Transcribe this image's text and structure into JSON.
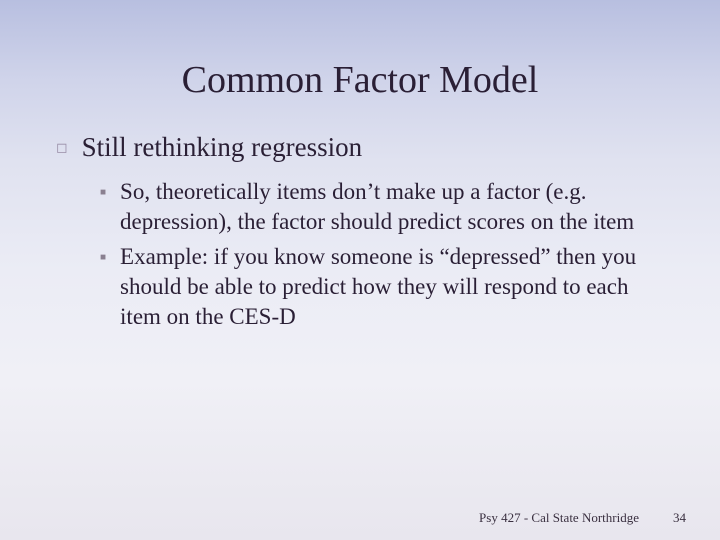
{
  "slide": {
    "title": "Common Factor Model",
    "background": {
      "gradient_top": "#b8bfe0",
      "gradient_mid": "#e0e2f0",
      "gradient_bottom": "#e8e6ee"
    },
    "title_fontsize": 38,
    "title_color": "#2a1f35",
    "body_color": "#2a1f35",
    "bullets": {
      "level1": [
        {
          "text": "Still rethinking regression",
          "fontsize": 27,
          "bullet_glyph": "◻",
          "bullet_color": "#9a8fa8",
          "children": [
            {
              "text": "So, theoretically items don’t make up a factor (e.g. depression), the factor should predict scores on the item",
              "fontsize": 23,
              "bullet_glyph": "■",
              "bullet_color": "#8a8090"
            },
            {
              "text": "Example: if you know someone is “depressed” then you should be able to predict how they will respond to each item on the CES-D",
              "fontsize": 23,
              "bullet_glyph": "■",
              "bullet_color": "#8a8090"
            }
          ]
        }
      ]
    },
    "footer": {
      "text": "Psy 427 - Cal State Northridge",
      "page_number": "34",
      "fontsize": 13,
      "color": "#3a3040"
    }
  }
}
